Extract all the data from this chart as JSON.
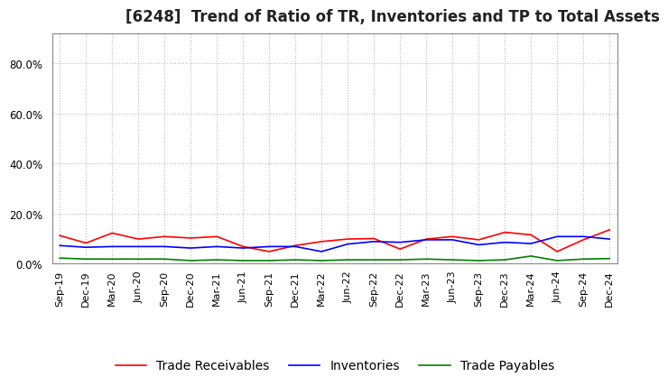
{
  "title": "[6248]  Trend of Ratio of TR, Inventories and TP to Total Assets",
  "ylim": [
    0.0,
    0.92
  ],
  "yticks": [
    0.0,
    0.2,
    0.4,
    0.6,
    0.8
  ],
  "ytick_labels": [
    "0.0%",
    "20.0%",
    "40.0%",
    "60.0%",
    "80.0%"
  ],
  "x_labels": [
    "Sep-19",
    "Dec-19",
    "Mar-20",
    "Jun-20",
    "Sep-20",
    "Dec-20",
    "Mar-21",
    "Jun-21",
    "Sep-21",
    "Dec-21",
    "Mar-22",
    "Jun-22",
    "Sep-22",
    "Dec-22",
    "Mar-23",
    "Jun-23",
    "Sep-23",
    "Dec-23",
    "Mar-24",
    "Jun-24",
    "Sep-24",
    "Dec-24"
  ],
  "trade_receivables": [
    0.112,
    0.082,
    0.122,
    0.098,
    0.108,
    0.102,
    0.108,
    0.068,
    0.048,
    0.072,
    0.088,
    0.098,
    0.1,
    0.058,
    0.098,
    0.108,
    0.095,
    0.125,
    0.115,
    0.048,
    0.095,
    0.135
  ],
  "inventories": [
    0.072,
    0.065,
    0.068,
    0.068,
    0.068,
    0.062,
    0.068,
    0.062,
    0.068,
    0.068,
    0.048,
    0.078,
    0.088,
    0.085,
    0.095,
    0.095,
    0.075,
    0.085,
    0.08,
    0.108,
    0.108,
    0.098
  ],
  "trade_payables": [
    0.022,
    0.018,
    0.018,
    0.018,
    0.018,
    0.012,
    0.015,
    0.012,
    0.012,
    0.015,
    0.012,
    0.015,
    0.015,
    0.015,
    0.018,
    0.015,
    0.012,
    0.015,
    0.03,
    0.012,
    0.018,
    0.02
  ],
  "tr_color": "#FF0000",
  "inv_color": "#0000FF",
  "tp_color": "#008000",
  "bg_color": "#FFFFFF",
  "grid_color": "#AAAAAA",
  "title_fontsize": 12,
  "tick_fontsize": 8.5,
  "legend_fontsize": 10
}
